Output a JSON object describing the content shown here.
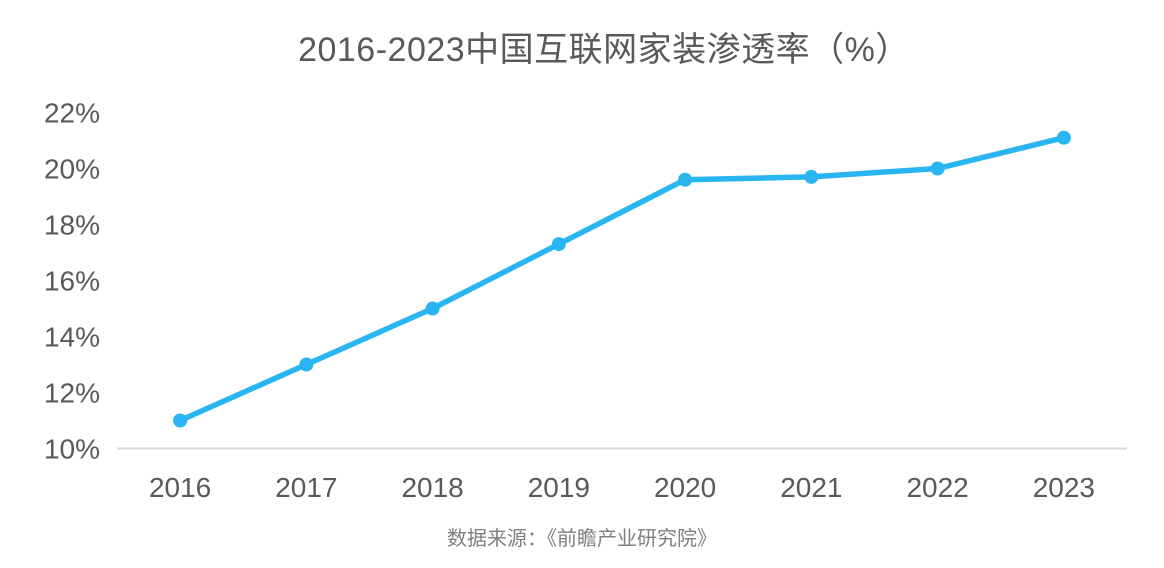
{
  "page": {
    "title": "2016-2023中国互联网家装渗透率（%）",
    "source_note": "数据来源：《前瞻产业研究院》"
  },
  "colors": {
    "line": "#29b5f2",
    "marker": "#29b5f2",
    "axis_line": "#d9d9d9",
    "title_text": "#595959",
    "tick_text": "#595959",
    "source_text": "#7f7f7f"
  },
  "chart_data": {
    "type": "line",
    "title": "2016-2023中国互联网家装渗透率（%）",
    "categories": [
      "2016",
      "2017",
      "2018",
      "2019",
      "2020",
      "2021",
      "2022",
      "2023"
    ],
    "series": [
      {
        "name": "中国互联网家装渗透率",
        "values": [
          11,
          13,
          15,
          17.3,
          19.6,
          19.7,
          20,
          21.1
        ]
      }
    ],
    "unit": "%",
    "xlabel": "",
    "ylabel": "",
    "ylim": [
      10,
      22
    ],
    "ytick_step": 2,
    "ytick_labels": [
      "10%",
      "12%",
      "14%",
      "16%",
      "18%",
      "20%",
      "22%"
    ],
    "grid": false,
    "legend": "none",
    "marker": "circle",
    "source_note": "数据来源：《前瞻产业研究院》"
  }
}
